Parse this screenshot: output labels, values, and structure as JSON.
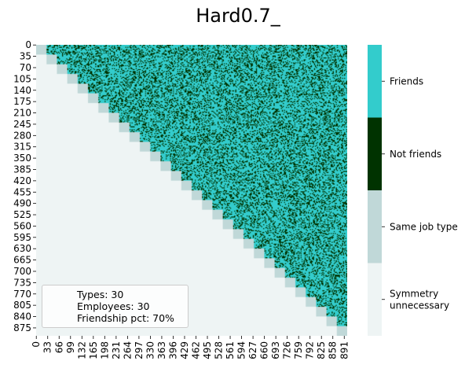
{
  "chart_data": {
    "type": "heatmap",
    "title": "Hard0.7_",
    "n": 900,
    "block_size": 30,
    "y_ticks": [
      "0",
      "35",
      "70",
      "105",
      "140",
      "175",
      "210",
      "245",
      "280",
      "315",
      "350",
      "385",
      "420",
      "455",
      "490",
      "525",
      "560",
      "595",
      "630",
      "665",
      "700",
      "735",
      "770",
      "805",
      "840",
      "875"
    ],
    "x_ticks": [
      "0",
      "33",
      "66",
      "99",
      "132",
      "165",
      "198",
      "231",
      "264",
      "297",
      "330",
      "363",
      "396",
      "429",
      "462",
      "495",
      "528",
      "561",
      "594",
      "627",
      "660",
      "693",
      "726",
      "759",
      "792",
      "825",
      "858",
      "891"
    ],
    "categories": [
      {
        "label": "Symmetry\nunnecessary",
        "color": "#eef4f4"
      },
      {
        "label": "Same job type",
        "color": "#c0d8d8"
      },
      {
        "label": "Not friends",
        "color": "#003300"
      },
      {
        "label": "Friends",
        "color": "#33cccc"
      }
    ],
    "friendship_fraction": 0.7,
    "annotation_lines": [
      "Types: 30",
      "Employees: 30",
      "Friendship pct: 70%"
    ],
    "legend_placement": "lower-left"
  }
}
